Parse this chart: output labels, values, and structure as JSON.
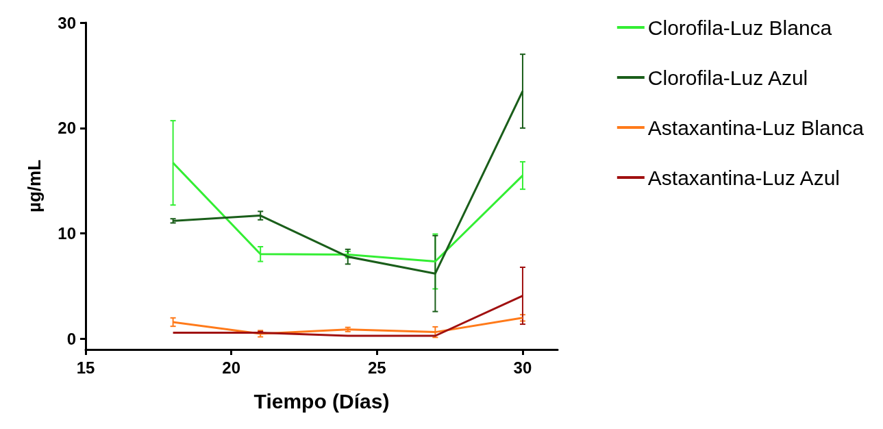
{
  "chart_data": {
    "type": "line",
    "xlabel": "Tiempo (Días)",
    "ylabel": "µg/mL",
    "x": [
      18,
      21,
      24,
      27,
      30
    ],
    "series": [
      {
        "name": "Clorofila-Luz Blanca",
        "color": "#33ee33",
        "values": [
          16.7,
          8.05,
          8.0,
          7.35,
          15.5
        ],
        "errors": [
          4.0,
          0.7,
          0.3,
          2.6,
          1.3
        ]
      },
      {
        "name": "Clorofila-Luz Azul",
        "color": "#1a5e1a",
        "values": [
          11.2,
          11.7,
          7.8,
          6.2,
          23.5
        ],
        "errors": [
          0.2,
          0.4,
          0.7,
          3.6,
          3.5
        ]
      },
      {
        "name": "Astaxantina-Luz Blanca",
        "color": "#ff7a1a",
        "values": [
          1.6,
          0.5,
          0.9,
          0.65,
          2.0
        ],
        "errors": [
          0.4,
          0.3,
          0.2,
          0.5,
          0.3
        ]
      },
      {
        "name": "Astaxantina-Luz Azul",
        "color": "#a01010",
        "values": [
          0.6,
          0.6,
          0.3,
          0.3,
          4.1
        ],
        "errors": [
          null,
          0.1,
          null,
          null,
          2.7
        ]
      }
    ],
    "xlim": [
      15,
      31.2
    ],
    "xticks": [
      15,
      20,
      25,
      30
    ],
    "ylim": [
      -1,
      30
    ],
    "yticks": [
      0,
      10,
      20,
      30
    ],
    "grid": false,
    "legend": "right",
    "marker": "none",
    "line_style": "solid"
  }
}
